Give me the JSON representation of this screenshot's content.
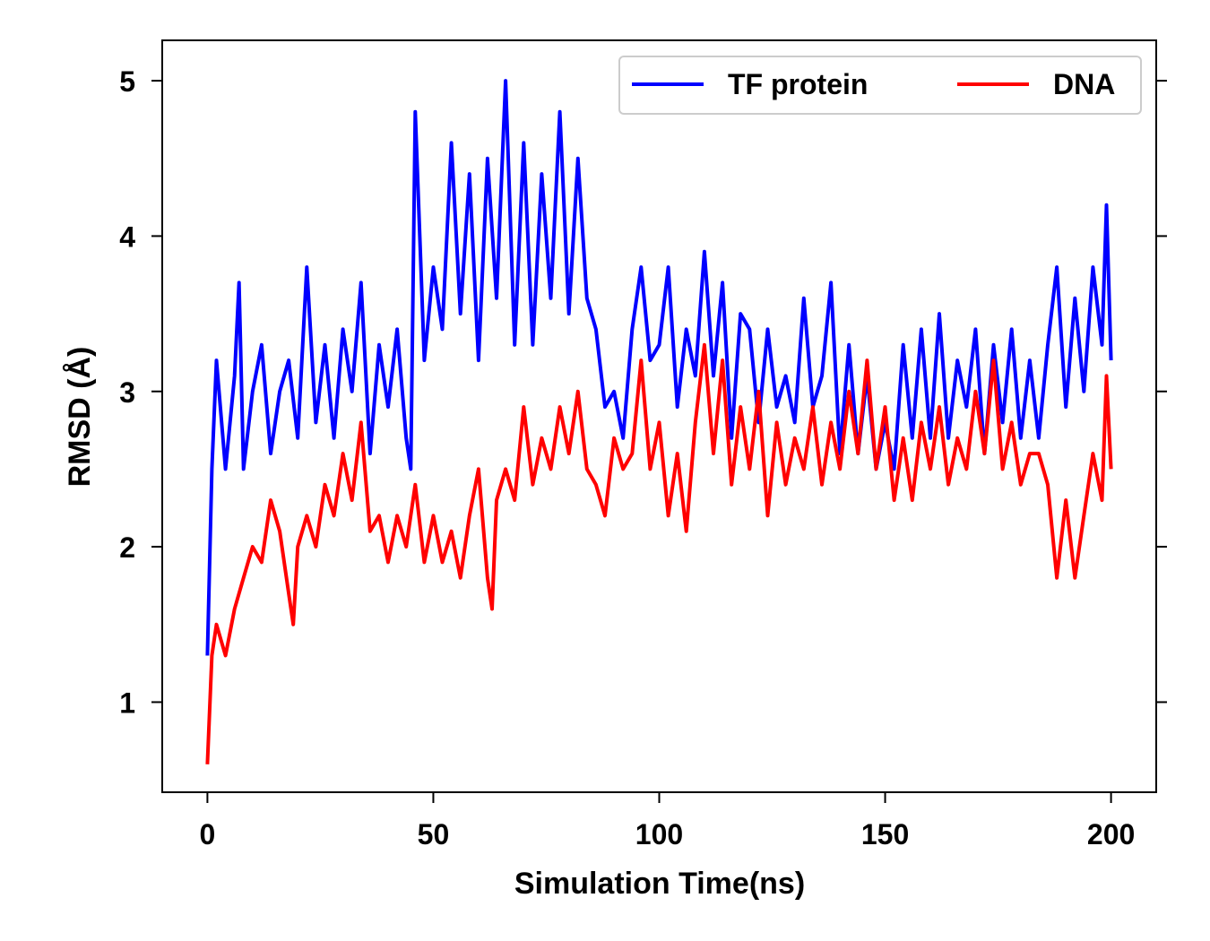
{
  "chart_data": {
    "type": "line",
    "xlabel": "Simulation Time(ns)",
    "ylabel": "RMSD (Å)",
    "xlim": [
      -10,
      210
    ],
    "ylim": [
      0.42,
      5.26
    ],
    "xticks": [
      "0",
      "50",
      "100",
      "150",
      "200"
    ],
    "yticks": [
      "1",
      "2",
      "3",
      "4",
      "5"
    ],
    "grid": false,
    "legend_position": "top-right",
    "series": [
      {
        "name": "TF protein",
        "color": "#0000ff",
        "x": [
          0,
          1,
          2,
          4,
          6,
          7,
          8,
          10,
          12,
          14,
          16,
          18,
          20,
          22,
          24,
          26,
          28,
          30,
          32,
          34,
          36,
          38,
          40,
          42,
          44,
          45,
          46,
          48,
          50,
          52,
          54,
          56,
          58,
          60,
          62,
          64,
          66,
          68,
          70,
          72,
          74,
          76,
          78,
          80,
          82,
          84,
          86,
          88,
          90,
          92,
          94,
          96,
          98,
          100,
          102,
          104,
          106,
          108,
          110,
          112,
          114,
          116,
          118,
          120,
          122,
          124,
          126,
          128,
          130,
          132,
          134,
          136,
          138,
          140,
          142,
          144,
          146,
          148,
          150,
          152,
          154,
          156,
          158,
          160,
          162,
          164,
          166,
          168,
          170,
          172,
          174,
          176,
          178,
          180,
          182,
          184,
          186,
          188,
          190,
          192,
          194,
          196,
          198,
          199,
          200
        ],
        "y": [
          1.3,
          2.5,
          3.2,
          2.5,
          3.1,
          3.7,
          2.5,
          3.0,
          3.3,
          2.6,
          3.0,
          3.2,
          2.7,
          3.8,
          2.8,
          3.3,
          2.7,
          3.4,
          3.0,
          3.7,
          2.6,
          3.3,
          2.9,
          3.4,
          2.7,
          2.5,
          4.8,
          3.2,
          3.8,
          3.4,
          4.6,
          3.5,
          4.4,
          3.2,
          4.5,
          3.6,
          5.0,
          3.3,
          4.6,
          3.3,
          4.4,
          3.6,
          4.8,
          3.5,
          4.5,
          3.6,
          3.4,
          2.9,
          3.0,
          2.7,
          3.4,
          3.8,
          3.2,
          3.3,
          3.8,
          2.9,
          3.4,
          3.1,
          3.9,
          3.1,
          3.7,
          2.7,
          3.5,
          3.4,
          2.8,
          3.4,
          2.9,
          3.1,
          2.8,
          3.6,
          2.9,
          3.1,
          3.7,
          2.6,
          3.3,
          2.6,
          3.1,
          2.5,
          2.8,
          2.5,
          3.3,
          2.7,
          3.4,
          2.7,
          3.5,
          2.7,
          3.2,
          2.9,
          3.4,
          2.6,
          3.3,
          2.8,
          3.4,
          2.7,
          3.2,
          2.7,
          3.3,
          3.8,
          2.9,
          3.6,
          3.0,
          3.8,
          3.3,
          4.2,
          3.2
        ]
      },
      {
        "name": "DNA",
        "color": "#ff0000",
        "x": [
          0,
          1,
          2,
          4,
          6,
          8,
          10,
          12,
          14,
          16,
          18,
          19,
          20,
          22,
          24,
          26,
          28,
          30,
          32,
          34,
          36,
          38,
          40,
          42,
          44,
          46,
          48,
          50,
          52,
          54,
          56,
          58,
          60,
          62,
          63,
          64,
          66,
          68,
          70,
          72,
          74,
          76,
          78,
          80,
          82,
          84,
          86,
          88,
          90,
          92,
          94,
          96,
          98,
          100,
          102,
          104,
          106,
          108,
          110,
          112,
          114,
          116,
          118,
          120,
          122,
          124,
          126,
          128,
          130,
          132,
          134,
          136,
          138,
          140,
          142,
          144,
          146,
          148,
          150,
          152,
          154,
          156,
          158,
          160,
          162,
          164,
          166,
          168,
          170,
          172,
          174,
          176,
          178,
          180,
          182,
          184,
          186,
          188,
          190,
          192,
          194,
          196,
          198,
          199,
          200
        ],
        "y": [
          0.6,
          1.3,
          1.5,
          1.3,
          1.6,
          1.8,
          2.0,
          1.9,
          2.3,
          2.1,
          1.7,
          1.5,
          2.0,
          2.2,
          2.0,
          2.4,
          2.2,
          2.6,
          2.3,
          2.8,
          2.1,
          2.2,
          1.9,
          2.2,
          2.0,
          2.4,
          1.9,
          2.2,
          1.9,
          2.1,
          1.8,
          2.2,
          2.5,
          1.8,
          1.6,
          2.3,
          2.5,
          2.3,
          2.9,
          2.4,
          2.7,
          2.5,
          2.9,
          2.6,
          3.0,
          2.5,
          2.4,
          2.2,
          2.7,
          2.5,
          2.6,
          3.2,
          2.5,
          2.8,
          2.2,
          2.6,
          2.1,
          2.8,
          3.3,
          2.6,
          3.2,
          2.4,
          2.9,
          2.5,
          3.0,
          2.2,
          2.8,
          2.4,
          2.7,
          2.5,
          2.9,
          2.4,
          2.8,
          2.5,
          3.0,
          2.6,
          3.2,
          2.5,
          2.9,
          2.3,
          2.7,
          2.3,
          2.8,
          2.5,
          2.9,
          2.4,
          2.7,
          2.5,
          3.0,
          2.6,
          3.2,
          2.5,
          2.8,
          2.4,
          2.6,
          2.6,
          2.4,
          1.8,
          2.3,
          1.8,
          2.2,
          2.6,
          2.3,
          3.1,
          2.5
        ]
      }
    ]
  }
}
